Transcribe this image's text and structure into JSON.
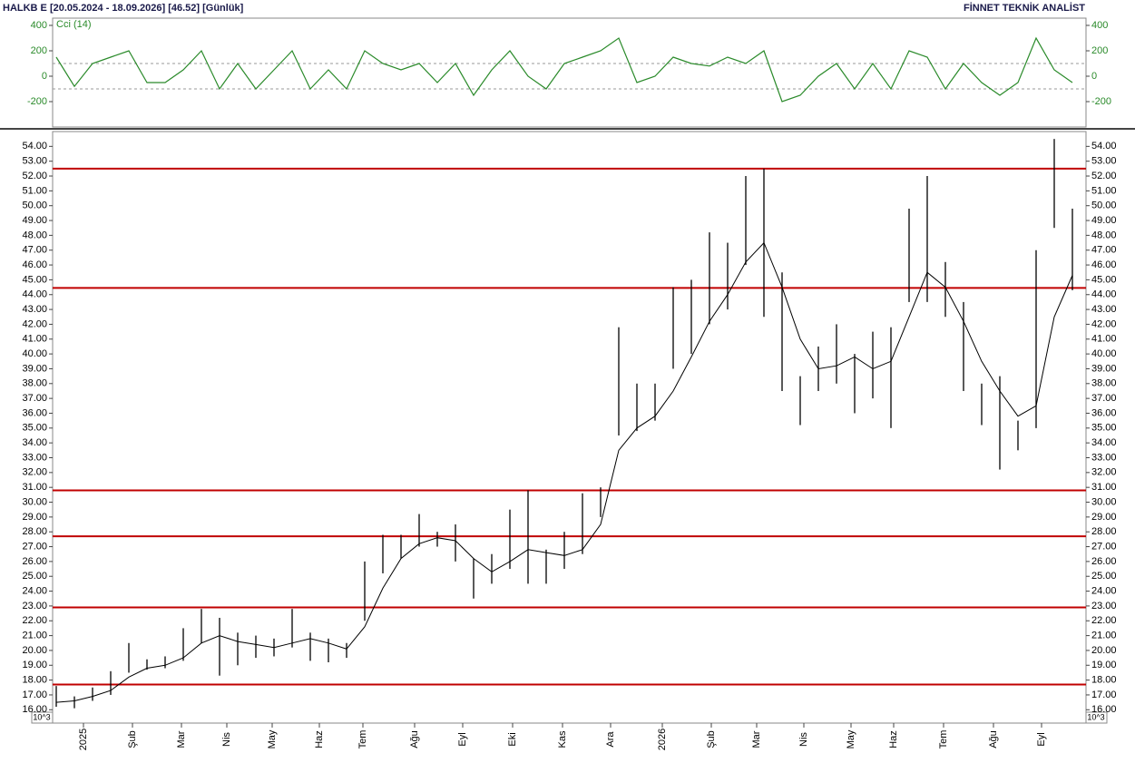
{
  "chart_data": [
    {
      "type": "line",
      "title": "Cci (14)",
      "color": "#2a8a2a",
      "x": [
        0,
        1,
        2,
        3,
        4,
        5,
        6,
        7,
        8,
        9,
        10,
        11,
        12,
        13,
        14,
        15,
        16,
        17,
        18,
        19,
        20,
        21,
        22,
        23,
        24,
        25,
        26,
        27,
        28,
        29,
        30,
        31,
        32,
        33,
        34,
        35,
        36,
        37,
        38,
        39,
        40,
        41,
        42,
        43,
        44,
        45,
        46,
        47,
        48,
        49,
        50,
        51,
        52,
        53,
        54,
        55,
        56
      ],
      "values": [
        150,
        -80,
        100,
        150,
        200,
        -50,
        -50,
        50,
        200,
        -100,
        100,
        -100,
        50,
        200,
        -100,
        50,
        -100,
        200,
        100,
        50,
        100,
        -50,
        100,
        -150,
        50,
        200,
        0,
        -100,
        100,
        150,
        200,
        300,
        -50,
        0,
        150,
        100,
        80,
        150,
        100,
        200,
        -200,
        -150,
        0,
        100,
        -100,
        100,
        -100,
        200,
        150,
        -100,
        100,
        -50,
        -150,
        -50,
        300,
        50,
        -50
      ],
      "xlim": [
        -0.2,
        56.75
      ],
      "ylim": [
        -400,
        457
      ],
      "yticks": [
        400,
        200,
        0,
        -200
      ],
      "ref_lines": [
        100,
        -100
      ]
    },
    {
      "type": "range-bar",
      "title": "HALKB E  [20.05.2024 - 18.09.2026]  [46.52]  [Günlük]",
      "source": "FİNNET TEKNİK ANALİST",
      "unit_label": "10^3",
      "color": "#000000",
      "x": [
        0,
        1,
        2,
        3,
        4,
        5,
        6,
        7,
        8,
        9,
        10,
        11,
        12,
        13,
        14,
        15,
        16,
        17,
        18,
        19,
        20,
        21,
        22,
        23,
        24,
        25,
        26,
        27,
        28,
        29,
        30,
        31,
        32,
        33,
        34,
        35,
        36,
        37,
        38,
        39,
        40,
        41,
        42,
        43,
        44,
        45,
        46,
        47,
        48,
        49,
        50,
        51,
        52,
        53,
        54,
        55,
        56
      ],
      "high": [
        17.6,
        16.9,
        17.5,
        18.6,
        20.5,
        19.4,
        19.6,
        21.5,
        22.8,
        22.2,
        21.2,
        21.0,
        20.8,
        22.8,
        21.2,
        20.8,
        20.5,
        26.0,
        27.8,
        27.8,
        29.2,
        28.0,
        28.5,
        26.2,
        26.5,
        29.5,
        30.8,
        26.8,
        28.0,
        30.6,
        31.0,
        41.8,
        38.0,
        38.0,
        44.5,
        45.0,
        48.2,
        47.5,
        52.0,
        52.5,
        45.5,
        38.5,
        40.5,
        42.0,
        40.0,
        41.5,
        41.8,
        49.8,
        52.0,
        46.2,
        43.5,
        38.0,
        38.5,
        35.5,
        47.0,
        54.5,
        49.8
      ],
      "low": [
        16.2,
        16.1,
        16.6,
        17.0,
        18.5,
        18.7,
        18.8,
        19.3,
        20.5,
        18.3,
        19.0,
        19.5,
        19.6,
        20.2,
        19.3,
        19.2,
        19.5,
        22.0,
        25.2,
        26.2,
        27.0,
        27.0,
        26.0,
        23.5,
        24.5,
        25.5,
        24.5,
        24.5,
        25.5,
        26.5,
        29.0,
        34.5,
        34.8,
        35.5,
        39.0,
        40.0,
        42.0,
        43.0,
        46.0,
        42.5,
        37.5,
        35.2,
        37.5,
        38.0,
        36.0,
        37.0,
        35.0,
        43.5,
        43.5,
        42.5,
        37.5,
        35.2,
        32.2,
        33.5,
        35.0,
        48.5,
        44.3
      ],
      "ma": {
        "color": "#000000",
        "values": [
          16.5,
          16.6,
          16.9,
          17.3,
          18.2,
          18.8,
          19.0,
          19.5,
          20.5,
          21.0,
          20.6,
          20.4,
          20.2,
          20.5,
          20.8,
          20.5,
          20.1,
          21.6,
          24.2,
          26.2,
          27.2,
          27.6,
          27.4,
          26.2,
          25.3,
          26.0,
          26.8,
          26.6,
          26.4,
          26.8,
          28.5,
          33.5,
          35.0,
          35.8,
          37.5,
          39.8,
          42.2,
          44.0,
          46.2,
          47.5,
          44.5,
          41.0,
          39.0,
          39.2,
          39.8,
          39.0,
          39.5,
          42.5,
          45.5,
          44.5,
          42.2,
          39.5,
          37.5,
          35.8,
          36.5,
          42.5,
          45.3
        ]
      },
      "levels": [
        52.5,
        44.45,
        30.8,
        27.7,
        22.9,
        17.7
      ],
      "level_color": "#c00000",
      "xlim": [
        -0.2,
        56.75
      ],
      "ylim": [
        15.1,
        55.0
      ],
      "xticks": [
        {
          "value": 1.5,
          "label": "2025"
        },
        {
          "value": 4.2,
          "label": "Şub"
        },
        {
          "value": 6.9,
          "label": "Mar"
        },
        {
          "value": 9.4,
          "label": "Nis"
        },
        {
          "value": 11.9,
          "label": "May"
        },
        {
          "value": 14.5,
          "label": "Haz"
        },
        {
          "value": 16.9,
          "label": "Tem"
        },
        {
          "value": 19.75,
          "label": "Ağu"
        },
        {
          "value": 22.4,
          "label": "Eyl"
        },
        {
          "value": 25.15,
          "label": "Eki"
        },
        {
          "value": 27.9,
          "label": "Kas"
        },
        {
          "value": 30.55,
          "label": "Ara"
        },
        {
          "value": 33.4,
          "label": "2026"
        },
        {
          "value": 36.1,
          "label": "Şub"
        },
        {
          "value": 38.6,
          "label": "Mar"
        },
        {
          "value": 41.2,
          "label": "Nis"
        },
        {
          "value": 43.8,
          "label": "May"
        },
        {
          "value": 46.15,
          "label": "Haz"
        },
        {
          "value": 48.9,
          "label": "Tem"
        },
        {
          "value": 51.65,
          "label": "Ağu"
        },
        {
          "value": 54.3,
          "label": "Eyl"
        }
      ],
      "yticks": [
        {
          "value": 16,
          "label": "16.00"
        },
        {
          "value": 17,
          "label": "17.00"
        },
        {
          "value": 18,
          "label": "18.00"
        },
        {
          "value": 19,
          "label": "19.00"
        },
        {
          "value": 20,
          "label": "20.00"
        },
        {
          "value": 21,
          "label": "21.00"
        },
        {
          "value": 22,
          "label": "22.00"
        },
        {
          "value": 23,
          "label": "23.00"
        },
        {
          "value": 24,
          "label": "24.00"
        },
        {
          "value": 25,
          "label": "25.00"
        },
        {
          "value": 26,
          "label": "26.00"
        },
        {
          "value": 27,
          "label": "27.00"
        },
        {
          "value": 28,
          "label": "28.00"
        },
        {
          "value": 29,
          "label": "29.00"
        },
        {
          "value": 30,
          "label": "30.00"
        },
        {
          "value": 31,
          "label": "31.00"
        },
        {
          "value": 32,
          "label": "32.00"
        },
        {
          "value": 33,
          "label": "33.00"
        },
        {
          "value": 34,
          "label": "34.00"
        },
        {
          "value": 35,
          "label": "35.00"
        },
        {
          "value": 36,
          "label": "36.00"
        },
        {
          "value": 37,
          "label": "37.00"
        },
        {
          "value": 38,
          "label": "38.00"
        },
        {
          "value": 39,
          "label": "39.00"
        },
        {
          "value": 40,
          "label": "40.00"
        },
        {
          "value": 41,
          "label": "41.00"
        },
        {
          "value": 42,
          "label": "42.00"
        },
        {
          "value": 43,
          "label": "43.00"
        },
        {
          "value": 44,
          "label": "44.00"
        },
        {
          "value": 45,
          "label": "45.00"
        },
        {
          "value": 46,
          "label": "46.00"
        },
        {
          "value": 47,
          "label": "47.00"
        },
        {
          "value": 48,
          "label": "48.00"
        },
        {
          "value": 49,
          "label": "49.00"
        },
        {
          "value": 50,
          "label": "50.00"
        },
        {
          "value": 51,
          "label": "51.00"
        },
        {
          "value": 52,
          "label": "52.00"
        },
        {
          "value": 53,
          "label": "53.00"
        },
        {
          "value": 54,
          "label": "54.00"
        }
      ]
    }
  ]
}
